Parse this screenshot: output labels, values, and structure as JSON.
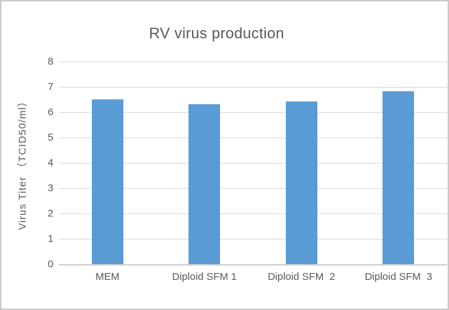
{
  "window": {
    "background": "#ffffff",
    "border_color": "#c9c9c9"
  },
  "chart_data": {
    "type": "bar",
    "title": "RV virus production",
    "categories": [
      "MEM",
      "Diploid SFM 1",
      "Diploid SFM  2",
      "Diploid SFM  3"
    ],
    "values": [
      6.5,
      6.3,
      6.4,
      6.8
    ],
    "xlabel": "",
    "ylabel": "Virus Titer （TCID50/ml）",
    "ylim": [
      0,
      8
    ],
    "yticks": [
      0,
      1,
      2,
      3,
      4,
      5,
      6,
      7,
      8
    ],
    "grid": true,
    "legend": false,
    "colors": {
      "bar": "#5b9bd5",
      "gridline": "#d9d9d9",
      "axis_line": "#cfcfcf",
      "text": "#595959"
    }
  }
}
